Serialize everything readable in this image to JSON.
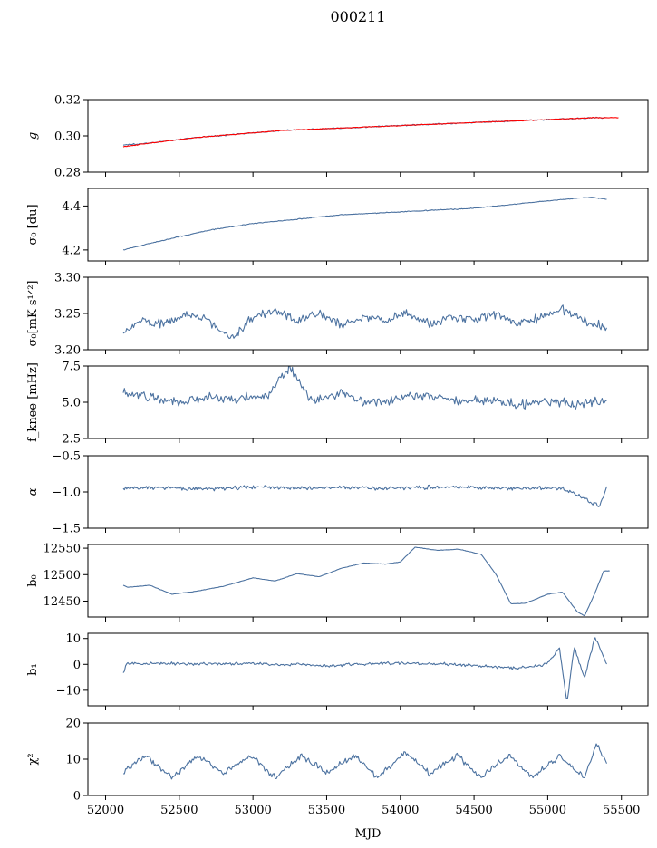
{
  "figure": {
    "title": "000211",
    "xlabel": "MJD"
  },
  "colors": {
    "series": "#4c72a0",
    "fit": "#ff0000",
    "axes": "#000000"
  },
  "chart_data": [
    {
      "type": "line",
      "ylabel": "g",
      "xlim": [
        51880,
        55680
      ],
      "ylim": [
        0.28,
        0.32
      ],
      "yticks": [
        0.28,
        0.3,
        0.32
      ],
      "ytick_labels": [
        "0.28",
        "0.30",
        "0.32"
      ],
      "series": [
        {
          "kind": "signal",
          "color_key": "series",
          "x": [
            52120,
            52300,
            52600,
            52900,
            53200,
            53500,
            53800,
            54100,
            54400,
            54700,
            55000,
            55300,
            55400
          ],
          "y": [
            0.295,
            0.296,
            0.299,
            0.301,
            0.303,
            0.304,
            0.305,
            0.306,
            0.307,
            0.308,
            0.309,
            0.31,
            0.31
          ]
        },
        {
          "kind": "fit",
          "color_key": "fit",
          "x": [
            52120,
            52300,
            52600,
            52900,
            53200,
            53500,
            53800,
            54100,
            54400,
            54700,
            55000,
            55300,
            55480
          ],
          "y": [
            0.294,
            0.296,
            0.299,
            0.301,
            0.303,
            0.304,
            0.305,
            0.306,
            0.307,
            0.308,
            0.309,
            0.31,
            0.31
          ]
        }
      ]
    },
    {
      "type": "line",
      "ylabel": "σ₀ [du]",
      "xlim": [
        51880,
        55680
      ],
      "ylim": [
        4.15,
        4.48
      ],
      "yticks": [
        4.2,
        4.4
      ],
      "ytick_labels": [
        "4.2",
        "4.4"
      ],
      "series": [
        {
          "kind": "signal",
          "color_key": "series",
          "x": [
            52120,
            52300,
            52500,
            52700,
            53000,
            53300,
            53600,
            53900,
            54200,
            54500,
            54800,
            55100,
            55300,
            55400
          ],
          "y": [
            4.2,
            4.23,
            4.26,
            4.29,
            4.32,
            4.34,
            4.36,
            4.37,
            4.38,
            4.39,
            4.41,
            4.43,
            4.44,
            4.43
          ]
        }
      ]
    },
    {
      "type": "line",
      "ylabel": "σ₀[mK s¹ᐟ²]",
      "xlim": [
        51880,
        55680
      ],
      "ylim": [
        3.2,
        3.3
      ],
      "yticks": [
        3.2,
        3.25,
        3.3
      ],
      "ytick_labels": [
        "3.20",
        "3.25",
        "3.30"
      ],
      "series": [
        {
          "kind": "signal",
          "color_key": "series",
          "x": [
            52120,
            52250,
            52400,
            52550,
            52700,
            52850,
            53000,
            53150,
            53300,
            53450,
            53600,
            53750,
            53900,
            54050,
            54200,
            54350,
            54500,
            54650,
            54800,
            54950,
            55100,
            55250,
            55400
          ],
          "y": [
            3.225,
            3.24,
            3.235,
            3.25,
            3.24,
            3.215,
            3.245,
            3.255,
            3.24,
            3.25,
            3.235,
            3.245,
            3.24,
            3.25,
            3.235,
            3.245,
            3.24,
            3.25,
            3.235,
            3.245,
            3.255,
            3.24,
            3.23
          ]
        }
      ]
    },
    {
      "type": "line",
      "ylabel": "f_knee [mHz]",
      "xlim": [
        51880,
        55680
      ],
      "ylim": [
        2.5,
        7.5
      ],
      "yticks": [
        2.5,
        5.0,
        7.5
      ],
      "ytick_labels": [
        "2.5",
        "5.0",
        "7.5"
      ],
      "series": [
        {
          "kind": "signal",
          "color_key": "series",
          "x": [
            52120,
            52300,
            52500,
            52700,
            52900,
            53100,
            53250,
            53400,
            53600,
            53800,
            54000,
            54200,
            54400,
            54600,
            54800,
            55000,
            55200,
            55400
          ],
          "y": [
            5.6,
            5.3,
            5.0,
            5.4,
            5.2,
            5.5,
            7.4,
            5.1,
            5.6,
            4.9,
            5.3,
            5.5,
            5.0,
            5.2,
            4.8,
            5.0,
            4.9,
            5.1
          ]
        }
      ]
    },
    {
      "type": "line",
      "ylabel": "α",
      "xlim": [
        51880,
        55680
      ],
      "ylim": [
        -1.5,
        -0.5
      ],
      "yticks": [
        -1.5,
        -1.0,
        -0.5
      ],
      "ytick_labels": [
        "−1.5",
        "−1.0",
        "−0.5"
      ],
      "series": [
        {
          "kind": "signal",
          "color_key": "series",
          "x": [
            52120,
            52400,
            52700,
            53000,
            53300,
            53600,
            53900,
            54200,
            54500,
            54800,
            55100,
            55350,
            55400
          ],
          "y": [
            -0.95,
            -0.94,
            -0.96,
            -0.93,
            -0.95,
            -0.94,
            -0.95,
            -0.93,
            -0.94,
            -0.95,
            -0.94,
            -1.2,
            -0.92
          ]
        }
      ]
    },
    {
      "type": "line",
      "ylabel": "b₀",
      "xlim": [
        51880,
        55680
      ],
      "ylim": [
        12420,
        12557
      ],
      "yticks": [
        12450,
        12500,
        12550
      ],
      "ytick_labels": [
        "12450",
        "12500",
        "12550"
      ],
      "series": [
        {
          "kind": "signal",
          "color_key": "series",
          "x": [
            52120,
            52150,
            52300,
            52450,
            52600,
            52800,
            53000,
            53150,
            53300,
            53450,
            53600,
            53750,
            53900,
            54000,
            54100,
            54250,
            54400,
            54550,
            54650,
            54750,
            54850,
            55000,
            55100,
            55200,
            55250,
            55320,
            55380,
            55420
          ],
          "y": [
            12480,
            12476,
            12480,
            12463,
            12468,
            12478,
            12494,
            12488,
            12502,
            12496,
            12512,
            12522,
            12520,
            12524,
            12552,
            12546,
            12548,
            12538,
            12500,
            12445,
            12446,
            12463,
            12467,
            12430,
            12422,
            12465,
            12507,
            12507
          ]
        }
      ]
    },
    {
      "type": "line",
      "ylabel": "b₁",
      "xlim": [
        51880,
        55680
      ],
      "ylim": [
        -16,
        12
      ],
      "yticks": [
        -10,
        0,
        10
      ],
      "ytick_labels": [
        "−10",
        "0",
        "10"
      ],
      "series": [
        {
          "kind": "signal",
          "color_key": "series",
          "x": [
            52120,
            52140,
            52500,
            53000,
            53500,
            54000,
            54500,
            54800,
            55000,
            55080,
            55130,
            55180,
            55250,
            55320,
            55400
          ],
          "y": [
            -3.5,
            0.5,
            0.2,
            0.3,
            -0.5,
            0.6,
            -0.4,
            -1.5,
            0.3,
            6.5,
            -15,
            6.8,
            -5.5,
            10.5,
            0.3
          ]
        }
      ]
    },
    {
      "type": "line",
      "ylabel": "χ²",
      "xlim": [
        51880,
        55680
      ],
      "ylim": [
        0,
        20
      ],
      "yticks": [
        0,
        10,
        20
      ],
      "ytick_labels": [
        "0",
        "10",
        "20"
      ],
      "xticks": [
        52000,
        52500,
        53000,
        53500,
        54000,
        54500,
        55000,
        55500
      ],
      "xtick_labels": [
        "52000",
        "52500",
        "53000",
        "53500",
        "54000",
        "54500",
        "55000",
        "55500"
      ],
      "series": [
        {
          "kind": "signal",
          "color_key": "series",
          "x": [
            52120,
            52270,
            52450,
            52630,
            52800,
            52980,
            53150,
            53330,
            53500,
            53680,
            53850,
            54030,
            54200,
            54380,
            54550,
            54730,
            54900,
            55080,
            55250,
            55330,
            55400
          ],
          "y": [
            6,
            11,
            5,
            11,
            6,
            11,
            5,
            11,
            6,
            11,
            5,
            12,
            6,
            11,
            5,
            11,
            5,
            11,
            5,
            14,
            9
          ]
        }
      ]
    }
  ]
}
